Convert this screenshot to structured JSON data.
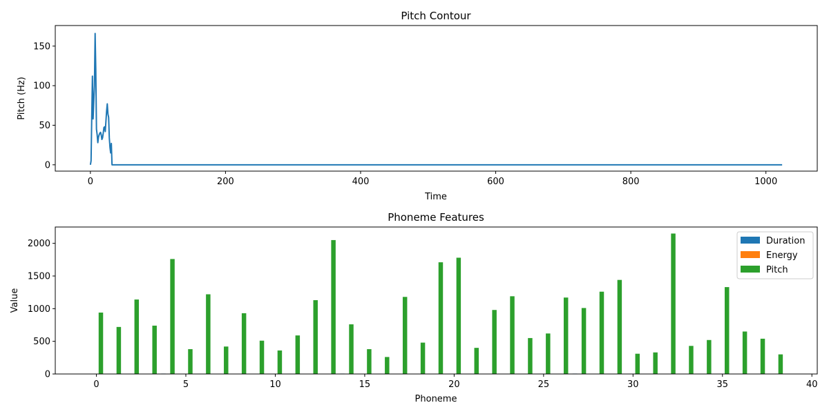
{
  "charts": [
    {
      "chart_data": {
        "type": "line",
        "title": "Pitch Contour",
        "xlabel": "Time",
        "ylabel": "Pitch (Hz)",
        "xlim": [
          -52,
          1076
        ],
        "ylim": [
          -8,
          176
        ],
        "xticks": [
          0,
          200,
          400,
          600,
          800,
          1000
        ],
        "yticks": [
          0,
          50,
          100,
          150
        ],
        "grid": false,
        "series": [
          {
            "color": "#1f77b4",
            "x": [
              0,
              1,
              2,
              3,
              4,
              5,
              6,
              7,
              8,
              9,
              10,
              11,
              12,
              13,
              14,
              15,
              16,
              17,
              18,
              19,
              20,
              21,
              22,
              23,
              24,
              25,
              26,
              27,
              28,
              29,
              30,
              31,
              32,
              33,
              34,
              35,
              36,
              37,
              38,
              39,
              40,
              41,
              42,
              43,
              44,
              1024
            ],
            "y": [
              0,
              5,
              60,
              112,
              58,
              80,
              100,
              166,
              120,
              45,
              38,
              28,
              35,
              38,
              40,
              41,
              38,
              32,
              34,
              40,
              47,
              48,
              42,
              55,
              68,
              77,
              64,
              60,
              34,
              22,
              15,
              27,
              0,
              0,
              0,
              0,
              0,
              0,
              0,
              0,
              0,
              0,
              0,
              0,
              0,
              0
            ]
          }
        ]
      }
    },
    {
      "chart_data": {
        "type": "bar",
        "title": "Phoneme Features",
        "xlabel": "Phoneme",
        "ylabel": "Value",
        "xlim": [
          -2.3,
          40.3
        ],
        "ylim": [
          0,
          2250
        ],
        "xticks": [
          0,
          5,
          10,
          15,
          20,
          25,
          30,
          35,
          40
        ],
        "yticks": [
          0,
          500,
          1000,
          1500,
          2000
        ],
        "grid": false,
        "legend": "top-right",
        "categories": [
          0,
          1,
          2,
          3,
          4,
          5,
          6,
          7,
          8,
          9,
          10,
          11,
          12,
          13,
          14,
          15,
          16,
          17,
          18,
          19,
          20,
          21,
          22,
          23,
          24,
          25,
          26,
          27,
          28,
          29,
          30,
          31,
          32,
          33,
          34,
          35,
          36,
          37,
          38
        ],
        "series": [
          {
            "name": "Duration",
            "color": "#1f77b4",
            "offset": -0.25,
            "values": [
              3,
              5,
              2,
              4,
              6,
              3,
              2,
              5,
              4,
              3,
              2,
              4,
              5,
              3,
              6,
              2,
              4,
              3,
              5,
              4,
              3,
              2,
              4,
              5,
              3,
              2,
              4,
              6,
              3,
              5,
              2,
              4,
              3,
              5,
              4,
              2,
              3,
              4,
              5
            ]
          },
          {
            "name": "Energy",
            "color": "#ff7f0e",
            "offset": 0,
            "values": [
              2,
              1,
              3,
              2,
              1,
              2,
              3,
              1,
              2,
              2,
              1,
              3,
              2,
              1,
              2,
              3,
              1,
              2,
              2,
              1,
              3,
              2,
              1,
              2,
              3,
              1,
              2,
              2,
              1,
              3,
              2,
              1,
              2,
              3,
              1,
              2,
              2,
              1,
              3
            ]
          },
          {
            "name": "Pitch",
            "color": "#2ca02c",
            "offset": 0.25,
            "values": [
              940,
              720,
              1140,
              740,
              1760,
              380,
              1220,
              420,
              930,
              510,
              360,
              590,
              1130,
              2050,
              760,
              380,
              260,
              1180,
              480,
              1710,
              1780,
              400,
              980,
              1190,
              550,
              620,
              1170,
              1010,
              1260,
              1440,
              310,
              330,
              2150,
              430,
              520,
              1330,
              650,
              540,
              300
            ]
          }
        ]
      }
    }
  ]
}
